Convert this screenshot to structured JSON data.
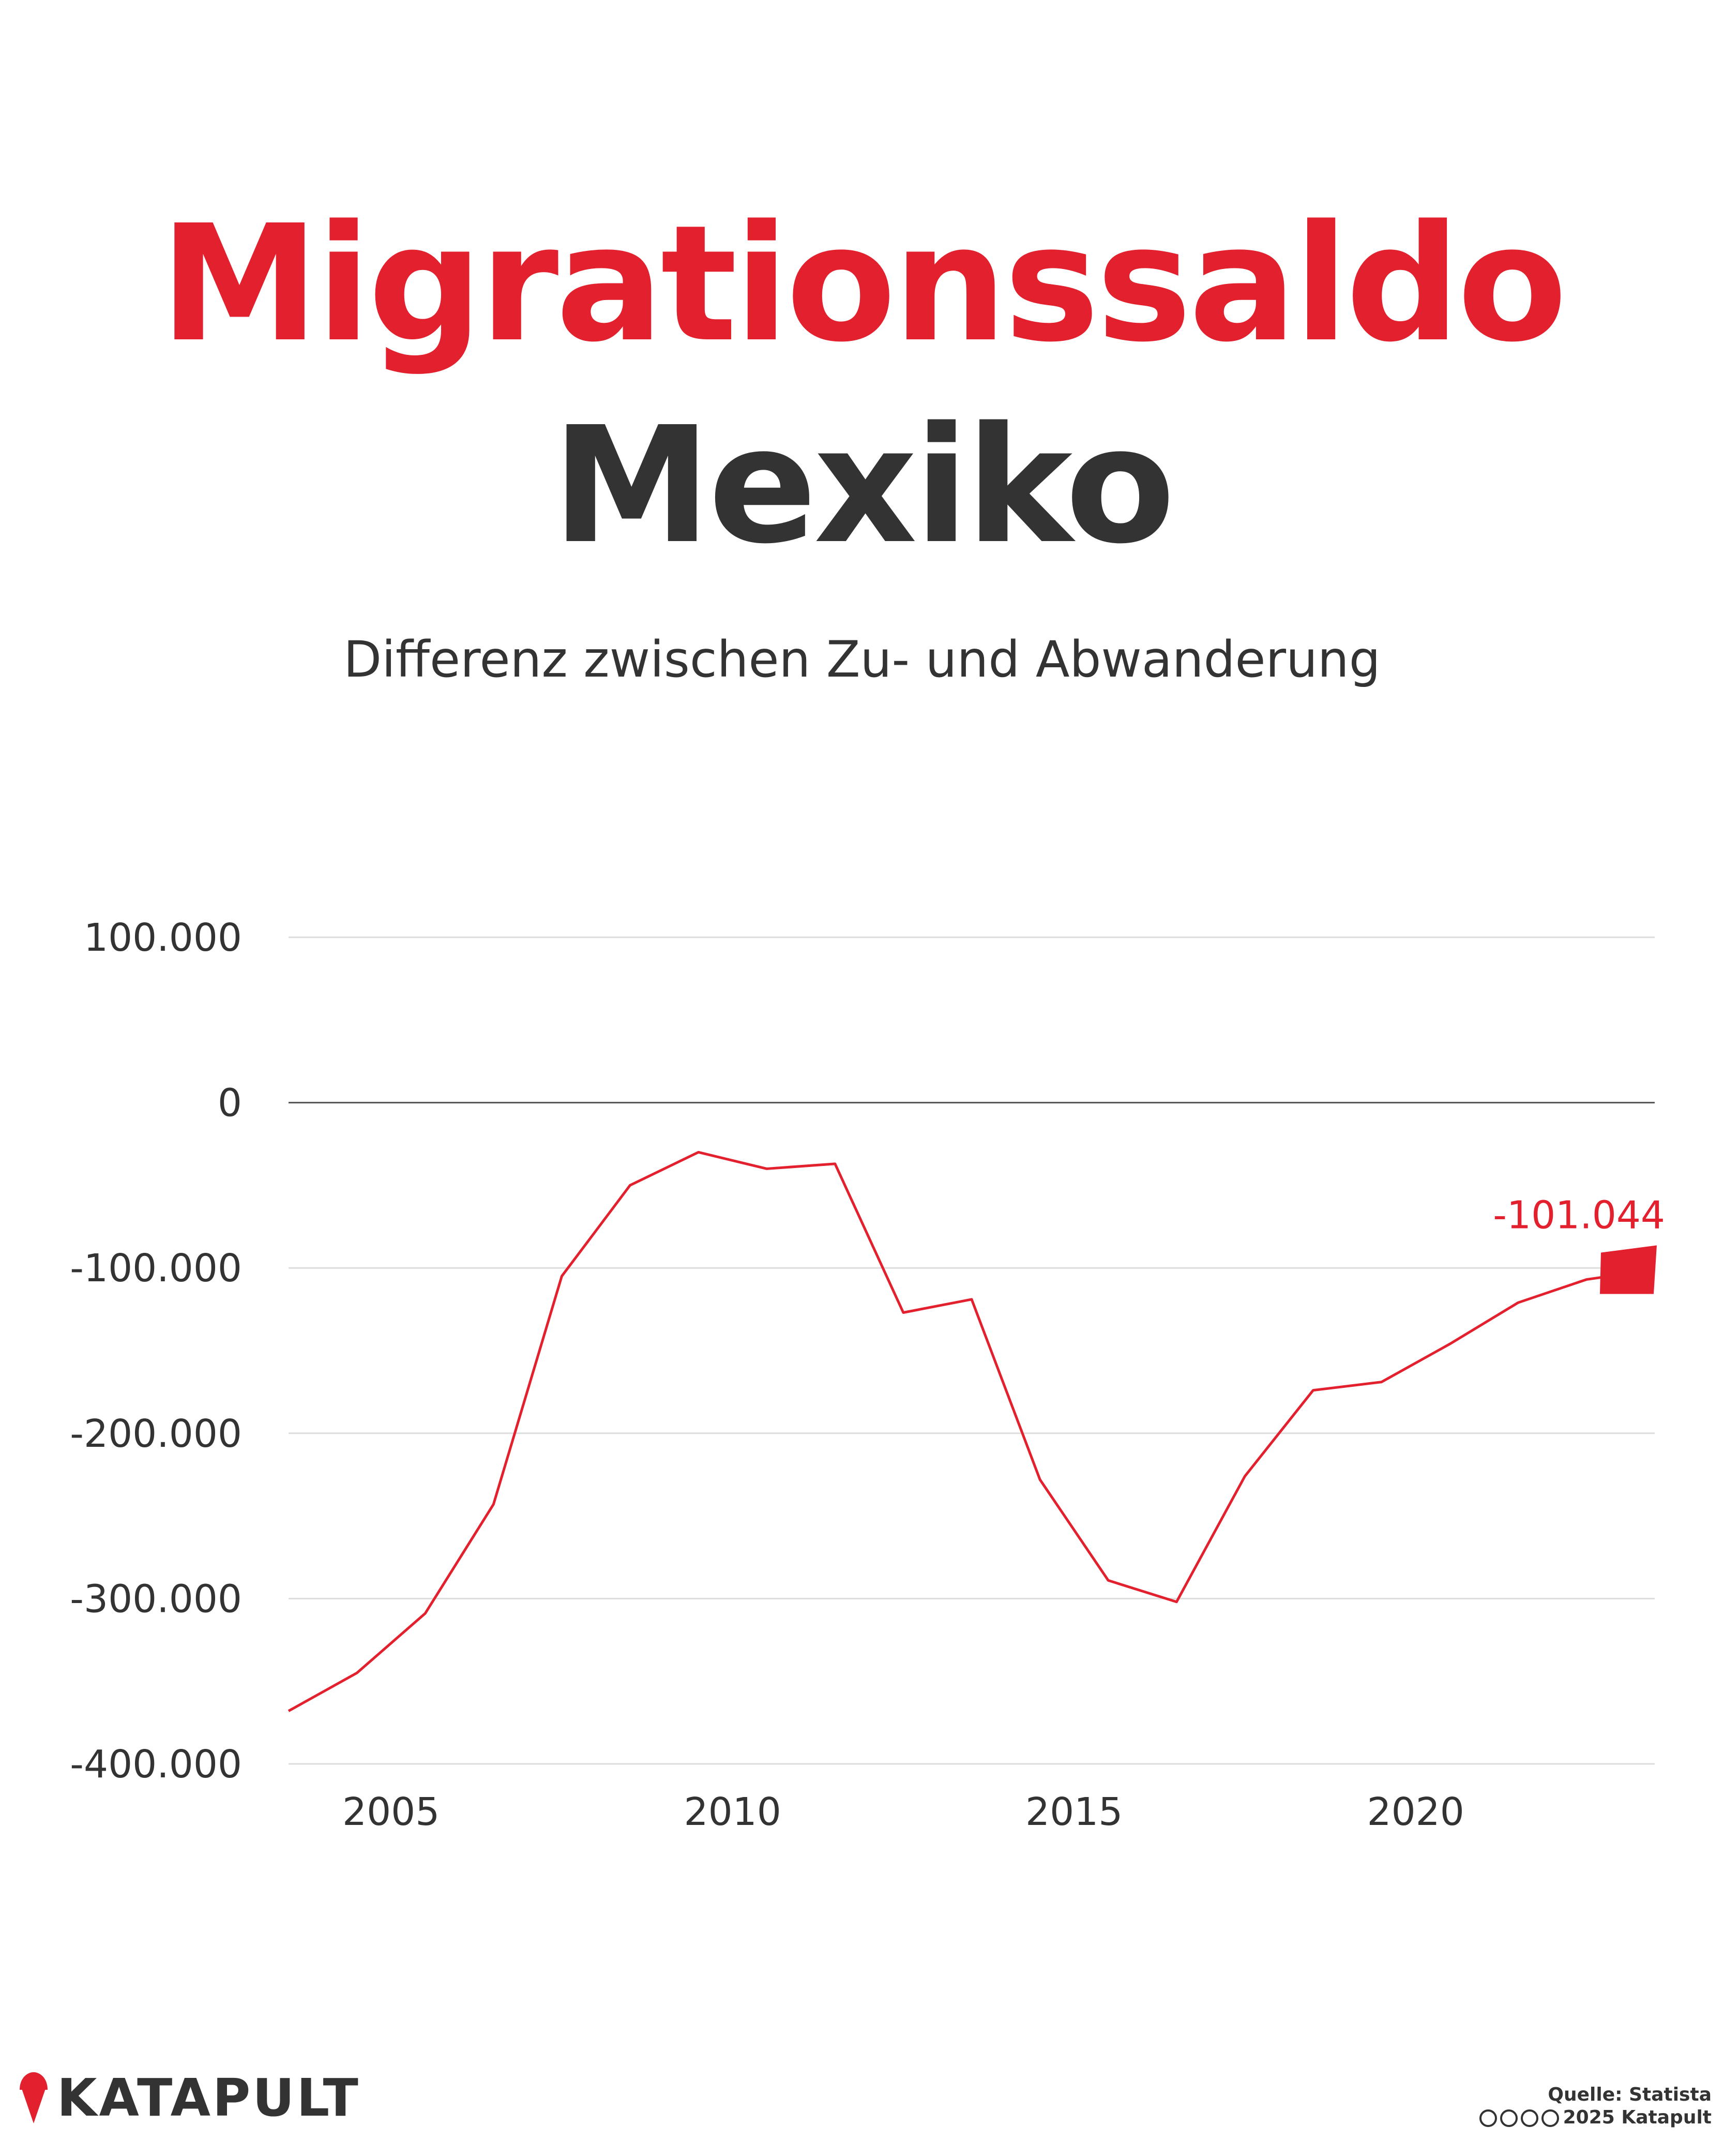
{
  "title": {
    "line1": "Migrationssaldo",
    "line2": "Mexiko"
  },
  "subtitle": "Differenz zwischen Zu- und Abwanderung",
  "colors": {
    "accent": "#e3202d",
    "text": "#333333",
    "grid": "#dddddd",
    "zero": "#555555"
  },
  "chart_data": {
    "type": "line",
    "title": "Migrationssaldo Mexiko",
    "subtitle": "Differenz zwischen Zu- und Abwanderung",
    "xlabel": "",
    "ylabel": "",
    "xlim": [
      2003.5,
      2023.5
    ],
    "ylim": [
      -400000,
      100000
    ],
    "yticks": [
      100000,
      0,
      -100000,
      -200000,
      -300000,
      -400000
    ],
    "ytick_labels": [
      "100.000",
      "0",
      "-100.000",
      "-200.000",
      "-300.000",
      "-400.000"
    ],
    "xticks": [
      2005,
      2010,
      2015,
      2020
    ],
    "xtick_labels": [
      "2005",
      "2010",
      "2015",
      "2020"
    ],
    "grid": true,
    "series": [
      {
        "name": "Migrationssaldo",
        "x": [
          2003.5,
          2004.5,
          2005.5,
          2006.5,
          2007.5,
          2008.5,
          2009.5,
          2010.5,
          2011.5,
          2012.5,
          2013.5,
          2014.5,
          2015.5,
          2016.5,
          2017.5,
          2018.5,
          2019.5,
          2020.5,
          2021.5,
          2022.5,
          2023.5
        ],
        "values": [
          -368000,
          -345000,
          -309000,
          -243000,
          -105000,
          -50000,
          -30000,
          -40000,
          -37000,
          -127000,
          -119000,
          -228000,
          -289000,
          -302000,
          -226000,
          -174000,
          -169000,
          -146000,
          -121000,
          -107000,
          -101044
        ]
      }
    ],
    "annotations": [
      {
        "x": 2023.5,
        "label": "-101.044"
      }
    ]
  },
  "footer": {
    "logo": "KATAPULT",
    "source": "Quelle: Statista",
    "copyright": "2025 Katapult",
    "cc_icons": [
      "cc-icon",
      "by-icon",
      "nc-icon",
      "nd-icon"
    ]
  }
}
